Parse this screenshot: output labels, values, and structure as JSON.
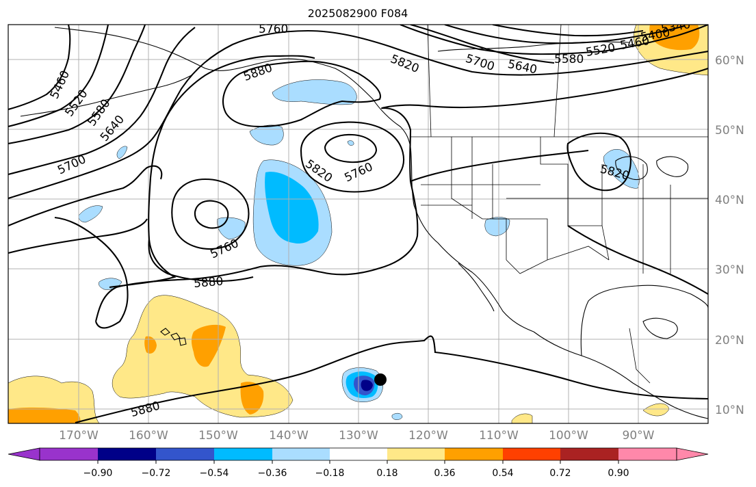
{
  "title": "2025082900 F084",
  "colors": {
    "n090": "#9933cc",
    "n072": "#000088",
    "n054": "#3355cc",
    "n036": "#00bbff",
    "n018": "#aaddff",
    "neutral": "#ffffff",
    "p018": "#ffe888",
    "p036": "#ffa000",
    "p054": "#ff4000",
    "p072": "#aa2222",
    "p090": "#ff88aa"
  },
  "longitude_labels": [
    "170°W",
    "160°W",
    "150°W",
    "140°W",
    "130°W",
    "120°W",
    "110°W",
    "100°W",
    "90°W"
  ],
  "latitude_labels": [
    "60°N",
    "50°N",
    "40°N",
    "30°N",
    "20°N",
    "10°N"
  ],
  "colorbar": {
    "ticks": [
      "−0.90",
      "−0.72",
      "−0.54",
      "−0.36",
      "−0.18",
      "0.18",
      "0.36",
      "0.54",
      "0.72",
      "0.90"
    ],
    "extend": "both"
  },
  "contour_labels": {
    "l5760_top": "5760",
    "l5880_nw": "5880",
    "l5820_ne": "5820",
    "l5700_ne": "5700",
    "l5640_ne": "5640",
    "l5580_ne": "5580",
    "l5520_ne": "5520",
    "l5460_ne": "5460",
    "l5400_ne": "5400",
    "l5340_ne": "5340",
    "l5460_w": "5460",
    "l5520_w": "5520",
    "l5580_w": "5580",
    "l5640_w": "5640",
    "l5700_w": "5700",
    "l5760_low1": "5760",
    "l5760_low2": "5760",
    "l5820_low": "5820",
    "l5820_lakes": "5820",
    "l5880_mid": "5880",
    "l5880_south": "5880"
  },
  "markers": [
    {
      "name": "storm-center",
      "lon": -126.5,
      "lat": 14.0,
      "color": "#000000"
    }
  ]
}
